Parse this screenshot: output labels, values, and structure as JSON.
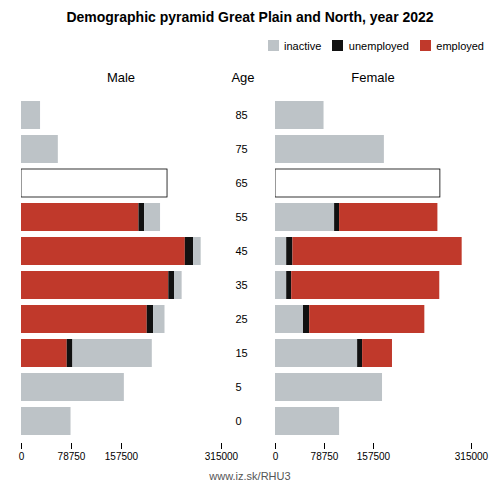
{
  "chart_data": {
    "type": "bar",
    "orientation": "horizontal",
    "stacked": true,
    "title": "Demographic pyramid Great Plain and North, year 2022",
    "ylabel": "Age",
    "caption": "www.iz.sk/RHU3",
    "categories": [
      "85",
      "75",
      "65",
      "55",
      "45",
      "35",
      "25",
      "15",
      "5",
      "0"
    ],
    "xlim": [
      0,
      315000
    ],
    "xticks": [
      0,
      78750,
      157500,
      315000
    ],
    "grid": false,
    "legend": "upper right",
    "panels": [
      {
        "subtitle": "Male",
        "series": [
          {
            "name": "employed",
            "color": "#c0392b",
            "values": [
              0,
              0,
              0,
              185000,
              258000,
              232000,
              198000,
              72000,
              0,
              0
            ]
          },
          {
            "name": "unemployed",
            "color": "#111111",
            "values": [
              0,
              0,
              0,
              9000,
              13000,
              9000,
              10000,
              9000,
              0,
              0
            ]
          },
          {
            "name": "inactive",
            "color": "#bdc3c7",
            "values": [
              30000,
              58000,
              230000,
              25000,
              12000,
              12000,
              18000,
              125000,
              162000,
              78000
            ],
            "colors": [
              "#bdc3c7",
              "#bdc3c7",
              "#ffffff",
              "#bdc3c7",
              "#bdc3c7",
              "#bdc3c7",
              "#bdc3c7",
              "#bdc3c7",
              "#bdc3c7",
              "#bdc3c7"
            ]
          }
        ]
      },
      {
        "subtitle": "Female",
        "series": [
          {
            "name": "inactive",
            "color": "#bdc3c7",
            "values": [
              78000,
              175000,
              265000,
              95000,
              18000,
              18000,
              45000,
              132000,
              172000,
              103000
            ],
            "colors": [
              "#bdc3c7",
              "#bdc3c7",
              "#ffffff",
              "#bdc3c7",
              "#bdc3c7",
              "#bdc3c7",
              "#bdc3c7",
              "#bdc3c7",
              "#bdc3c7",
              "#bdc3c7"
            ]
          },
          {
            "name": "unemployed",
            "color": "#111111",
            "values": [
              0,
              0,
              0,
              8000,
              10000,
              8000,
              10000,
              8000,
              0,
              0
            ]
          },
          {
            "name": "employed",
            "color": "#c0392b",
            "values": [
              0,
              0,
              0,
              158000,
              272000,
              238000,
              185000,
              48000,
              0,
              0
            ]
          }
        ]
      }
    ]
  }
}
